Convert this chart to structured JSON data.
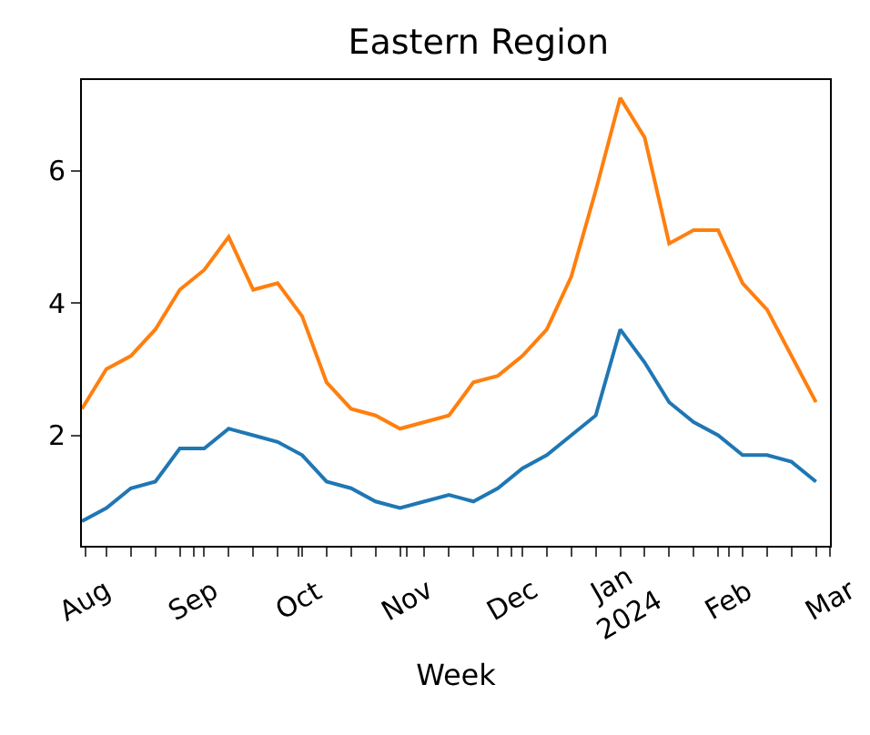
{
  "chart_data": {
    "type": "line",
    "title": "Eastern Region",
    "xlabel": "Week",
    "x": [
      "2023-07-31",
      "2023-08-07",
      "2023-08-14",
      "2023-08-21",
      "2023-08-28",
      "2023-09-04",
      "2023-09-11",
      "2023-09-18",
      "2023-09-25",
      "2023-10-02",
      "2023-10-09",
      "2023-10-16",
      "2023-10-23",
      "2023-10-30",
      "2023-11-06",
      "2023-11-13",
      "2023-11-20",
      "2023-11-27",
      "2023-12-04",
      "2023-12-11",
      "2023-12-18",
      "2023-12-25",
      "2024-01-01",
      "2024-01-08",
      "2024-01-15",
      "2024-01-22",
      "2024-01-29",
      "2024-02-05",
      "2024-02-12",
      "2024-02-19",
      "2024-02-26"
    ],
    "series": [
      {
        "color": "#1f77b4",
        "values": [
          0.7,
          0.9,
          1.2,
          1.3,
          1.8,
          1.8,
          2.1,
          2.0,
          1.9,
          1.7,
          1.3,
          1.2,
          1.0,
          0.9,
          1.0,
          1.1,
          1.0,
          1.2,
          1.5,
          1.7,
          2.0,
          2.3,
          3.6,
          3.1,
          2.5,
          2.2,
          2.0,
          1.7,
          1.7,
          1.6,
          1.3
        ]
      },
      {
        "color": "#ff7f0e",
        "values": [
          2.4,
          3.0,
          3.2,
          3.6,
          4.2,
          4.5,
          5.0,
          4.2,
          4.3,
          3.8,
          2.8,
          2.4,
          2.3,
          2.1,
          2.2,
          2.3,
          2.8,
          2.9,
          3.2,
          3.6,
          4.4,
          5.7,
          7.1,
          6.5,
          4.9,
          5.1,
          5.1,
          4.3,
          3.9,
          3.2,
          2.5
        ]
      }
    ],
    "xlim": [
      "2023-07-31",
      "2024-03-01"
    ],
    "xticks": [
      {
        "value": "2023-08-01",
        "label": "Aug"
      },
      {
        "value": "2023-09-01",
        "label": "Sep"
      },
      {
        "value": "2023-10-01",
        "label": "Oct"
      },
      {
        "value": "2023-11-01",
        "label": "Nov"
      },
      {
        "value": "2023-12-01",
        "label": "Dec"
      },
      {
        "value": "2024-01-01",
        "label": "Jan\n2024"
      },
      {
        "value": "2024-02-01",
        "label": "Feb"
      },
      {
        "value": "2024-03-01",
        "label": "Mar"
      },
      {
        "value": "2023-08-07",
        "label": null
      },
      {
        "value": "2023-08-14",
        "label": null
      },
      {
        "value": "2023-08-21",
        "label": null
      },
      {
        "value": "2023-08-28",
        "label": null
      },
      {
        "value": "2023-09-04",
        "label": null
      },
      {
        "value": "2023-09-11",
        "label": null
      },
      {
        "value": "2023-09-18",
        "label": null
      },
      {
        "value": "2023-09-25",
        "label": null
      },
      {
        "value": "2023-10-02",
        "label": null
      },
      {
        "value": "2023-10-09",
        "label": null
      },
      {
        "value": "2023-10-16",
        "label": null
      },
      {
        "value": "2023-10-23",
        "label": null
      },
      {
        "value": "2023-10-30",
        "label": null
      },
      {
        "value": "2023-11-06",
        "label": null
      },
      {
        "value": "2023-11-13",
        "label": null
      },
      {
        "value": "2023-11-20",
        "label": null
      },
      {
        "value": "2023-11-27",
        "label": null
      },
      {
        "value": "2023-12-04",
        "label": null
      },
      {
        "value": "2023-12-11",
        "label": null
      },
      {
        "value": "2023-12-18",
        "label": null
      },
      {
        "value": "2023-12-25",
        "label": null
      },
      {
        "value": "2024-01-08",
        "label": null
      },
      {
        "value": "2024-01-15",
        "label": null
      },
      {
        "value": "2024-01-22",
        "label": null
      },
      {
        "value": "2024-01-29",
        "label": null
      },
      {
        "value": "2024-02-05",
        "label": null
      },
      {
        "value": "2024-02-12",
        "label": null
      },
      {
        "value": "2024-02-19",
        "label": null
      },
      {
        "value": "2024-02-26",
        "label": null
      }
    ],
    "ylim": [
      0.33,
      7.37
    ],
    "yticks": [
      2,
      4,
      6
    ],
    "marker": "none",
    "line_style": "solid"
  }
}
